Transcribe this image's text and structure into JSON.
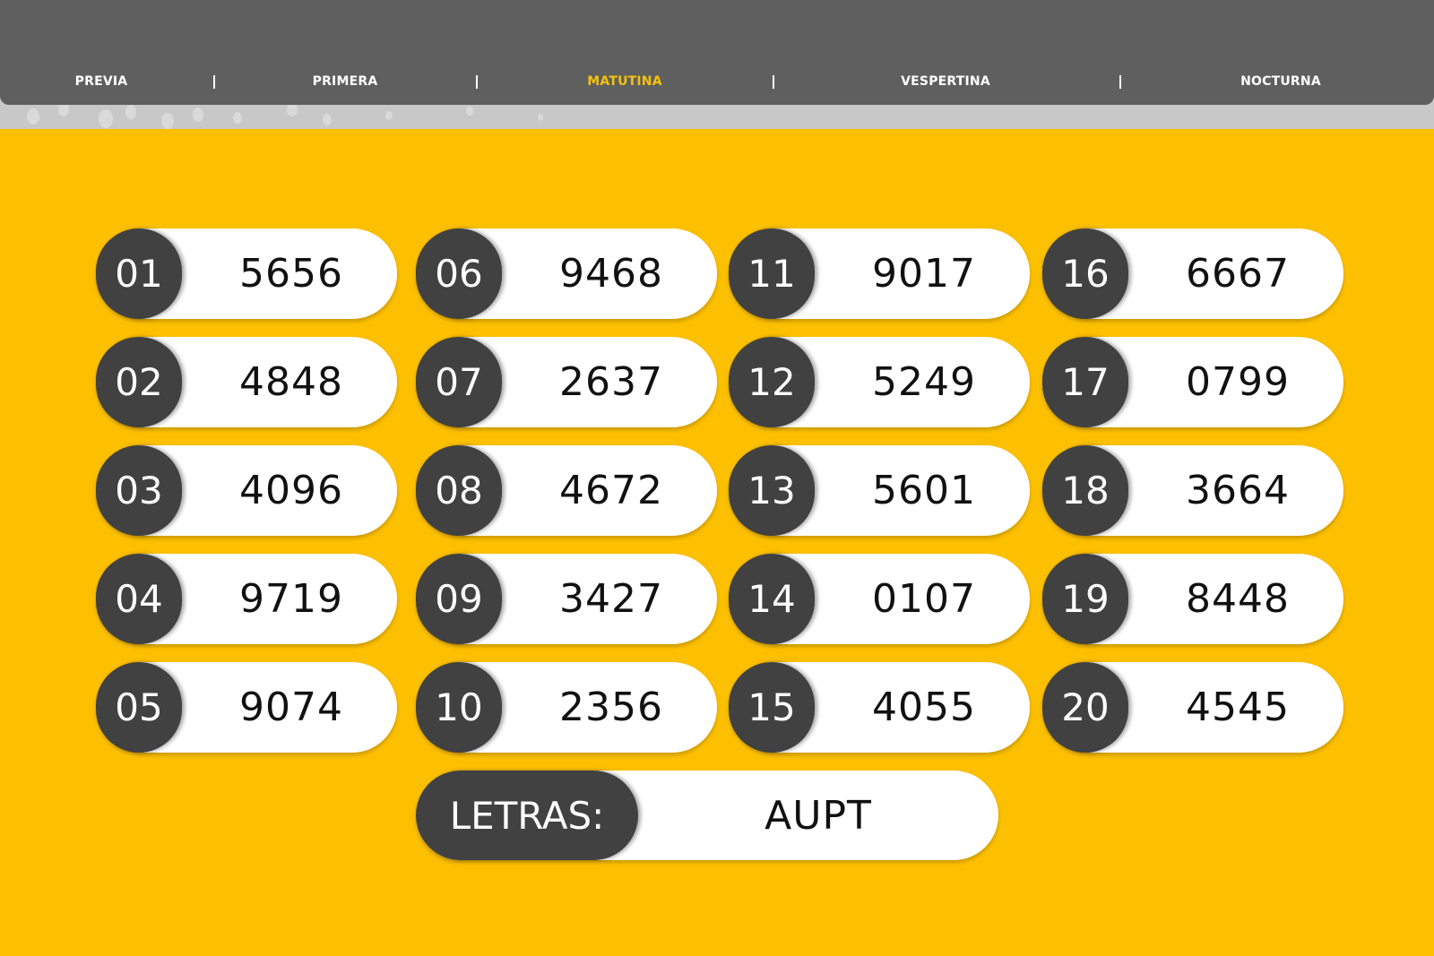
{
  "nav": {
    "items": [
      {
        "label": "PREVIA",
        "active": false
      },
      {
        "label": "PRIMERA",
        "active": false
      },
      {
        "label": "MATUTINA",
        "active": true
      },
      {
        "label": "VESPERTINA",
        "active": false
      },
      {
        "label": "NOCTURNA",
        "active": false
      }
    ],
    "active_color": "#f4c20d"
  },
  "colors": {
    "background": "#fdc000",
    "badge": "#414141",
    "header": "#5f5f5f"
  },
  "results": [
    {
      "pos": "01",
      "number": "5656"
    },
    {
      "pos": "02",
      "number": "4848"
    },
    {
      "pos": "03",
      "number": "4096"
    },
    {
      "pos": "04",
      "number": "9719"
    },
    {
      "pos": "05",
      "number": "9074"
    },
    {
      "pos": "06",
      "number": "9468"
    },
    {
      "pos": "07",
      "number": "2637"
    },
    {
      "pos": "08",
      "number": "4672"
    },
    {
      "pos": "09",
      "number": "3427"
    },
    {
      "pos": "10",
      "number": "2356"
    },
    {
      "pos": "11",
      "number": "9017"
    },
    {
      "pos": "12",
      "number": "5249"
    },
    {
      "pos": "13",
      "number": "5601"
    },
    {
      "pos": "14",
      "number": "0107"
    },
    {
      "pos": "15",
      "number": "4055"
    },
    {
      "pos": "16",
      "number": "6667"
    },
    {
      "pos": "17",
      "number": "0799"
    },
    {
      "pos": "18",
      "number": "3664"
    },
    {
      "pos": "19",
      "number": "8448"
    },
    {
      "pos": "20",
      "number": "4545"
    }
  ],
  "letras": {
    "label": "LETRAS:",
    "value": "AUPT"
  }
}
